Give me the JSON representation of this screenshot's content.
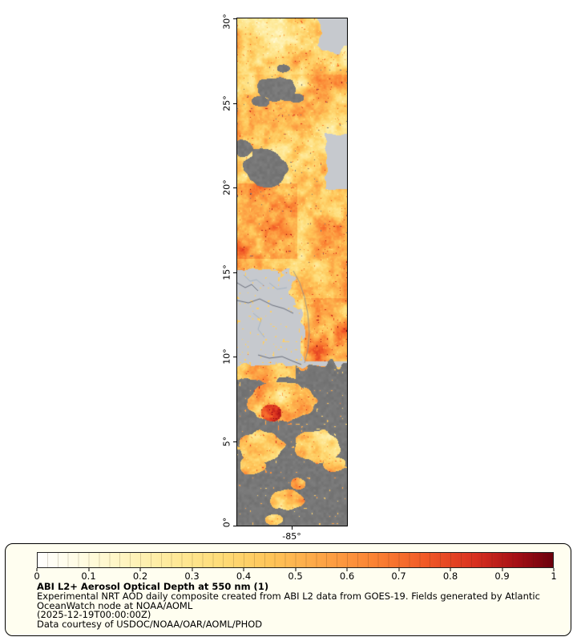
{
  "map": {
    "y_axis_ticks": [
      "30°",
      "25°",
      "20°",
      "15°",
      "10°",
      "5°",
      "0°"
    ],
    "x_axis_ticks": [
      "-85°"
    ]
  },
  "legend": {
    "title": "ABI L2+ Aerosol Optical Depth at 550 nm (1)",
    "description_line1": "Experimental NRT AOD daily composite created from ABI L2 data from GOES-19. Fields generated by Atlantic",
    "description_line2": "OceanWatch node at NOAA/AOML",
    "timestamp_line": "(2025-12-19T00:00:00Z)",
    "credit_line": "Data courtesy of USDOC/NOAA/OAR/AOML/PHOD",
    "colorbar": {
      "min": 0,
      "max": 1,
      "tick_labels": [
        "0",
        "0.1",
        "0.2",
        "0.3",
        "0.4",
        "0.5",
        "0.6",
        "0.7",
        "0.8",
        "0.9",
        "1"
      ],
      "stops": [
        {
          "t": 0.0,
          "color": "#ffffff"
        },
        {
          "t": 0.08,
          "color": "#fffce4"
        },
        {
          "t": 0.15,
          "color": "#fff7c8"
        },
        {
          "t": 0.25,
          "color": "#feeb9e"
        },
        {
          "t": 0.35,
          "color": "#fedd7a"
        },
        {
          "t": 0.45,
          "color": "#fec559"
        },
        {
          "t": 0.55,
          "color": "#fda546"
        },
        {
          "t": 0.65,
          "color": "#fb8434"
        },
        {
          "t": 0.75,
          "color": "#f15b27"
        },
        {
          "t": 0.85,
          "color": "#d8301f"
        },
        {
          "t": 0.93,
          "color": "#a50f15"
        },
        {
          "t": 1.0,
          "color": "#6b000b"
        }
      ]
    }
  },
  "colors": {
    "page_background": "#ffffff",
    "legend_background": "#fffef0",
    "map_base_gray": "#c6c9ce",
    "map_nodata_gray": "#7f7f7f",
    "frame": "#000000"
  }
}
